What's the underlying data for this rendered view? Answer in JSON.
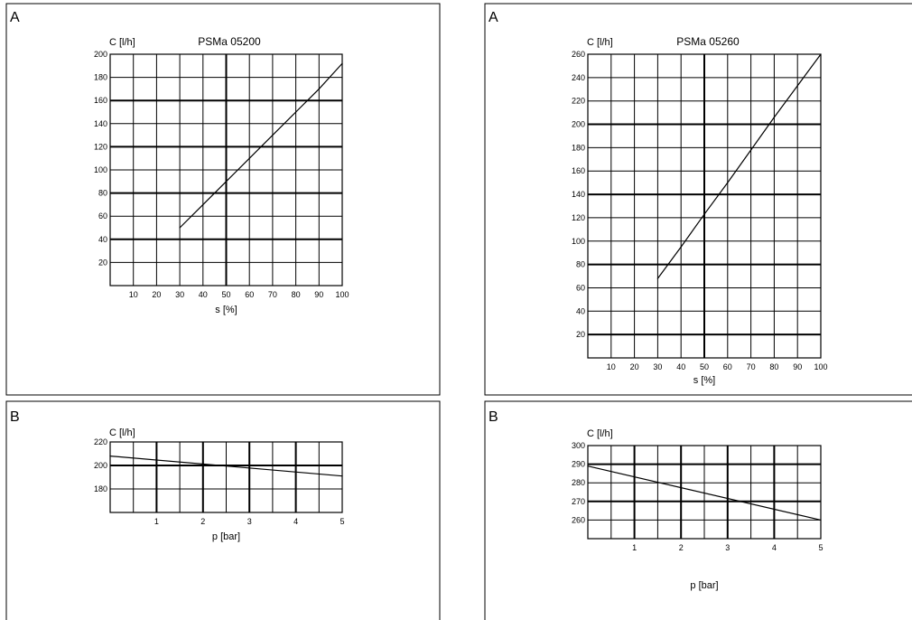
{
  "chart_data": [
    {
      "type": "line",
      "panel_label": "A",
      "title": "PSMa 05200",
      "xlabel": "s [%]",
      "ylabel": "C [l/h]",
      "xlim": [
        0,
        100
      ],
      "ylim": [
        0,
        200
      ],
      "x_ticks": [
        10,
        20,
        30,
        40,
        50,
        60,
        70,
        80,
        90,
        100
      ],
      "y_ticks": [
        20,
        40,
        60,
        80,
        100,
        120,
        140,
        160,
        180,
        200
      ],
      "grid": true,
      "series": [
        {
          "x": [
            30,
            40,
            50,
            60,
            70,
            80,
            90,
            100
          ],
          "y": [
            50,
            70,
            90,
            110,
            130,
            150,
            170,
            192
          ]
        }
      ]
    },
    {
      "type": "line",
      "panel_label": "A",
      "title": "PSMa 05260",
      "xlabel": "s [%]",
      "ylabel": "C [l/h]",
      "xlim": [
        0,
        100
      ],
      "ylim": [
        0,
        260
      ],
      "x_ticks": [
        10,
        20,
        30,
        40,
        50,
        60,
        70,
        80,
        90,
        100
      ],
      "y_ticks": [
        20,
        40,
        60,
        80,
        100,
        120,
        140,
        160,
        180,
        200,
        220,
        240,
        260
      ],
      "grid": true,
      "series": [
        {
          "x": [
            30,
            40,
            50,
            60,
            70,
            80,
            90,
            100
          ],
          "y": [
            68,
            95,
            123,
            150,
            178,
            206,
            233,
            260
          ]
        }
      ]
    },
    {
      "type": "line",
      "panel_label": "B",
      "title": "",
      "xlabel": "p [bar]",
      "ylabel": "C [l/h]",
      "xlim": [
        0,
        5
      ],
      "ylim": [
        160,
        220
      ],
      "x_ticks": [
        1,
        2,
        3,
        4,
        5
      ],
      "y_ticks": [
        180,
        200,
        220
      ],
      "grid": true,
      "series": [
        {
          "x": [
            0,
            5
          ],
          "y": [
            208,
            191
          ]
        }
      ]
    },
    {
      "type": "line",
      "panel_label": "B",
      "title": "",
      "xlabel": "p [bar]",
      "ylabel": "C [l/h]",
      "xlim": [
        0,
        5
      ],
      "ylim": [
        250,
        300
      ],
      "x_ticks": [
        1,
        2,
        3,
        4,
        5
      ],
      "y_ticks": [
        260,
        270,
        280,
        290,
        300
      ],
      "grid": true,
      "series": [
        {
          "x": [
            0,
            5
          ],
          "y": [
            289,
            260
          ]
        }
      ]
    }
  ]
}
